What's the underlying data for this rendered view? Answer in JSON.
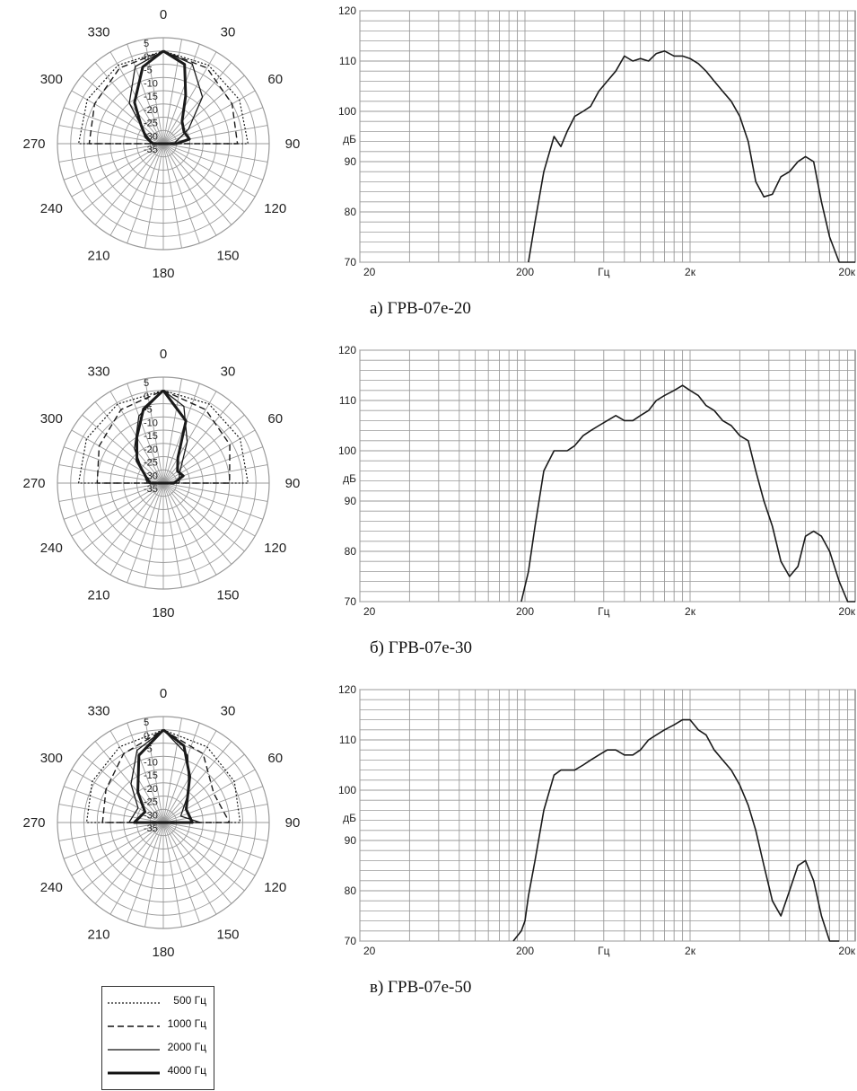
{
  "colors": {
    "grid": "#9a9a9a",
    "curve": "#1a1a1a",
    "axis_text": "#222222"
  },
  "legend": [
    {
      "label": "500 Гц",
      "dash": "2,2",
      "width": 1.2
    },
    {
      "label": "1000 Гц",
      "dash": "7,4",
      "width": 1.4
    },
    {
      "label": "2000 Гц",
      "dash": "",
      "width": 1.3
    },
    {
      "label": "4000 Гц",
      "dash": "",
      "width": 3
    }
  ],
  "chart_data": [
    {
      "type": "polar",
      "angle_labels": [
        "0",
        "30",
        "60",
        "90",
        "120",
        "150",
        "180",
        "210",
        "240",
        "270",
        "300",
        "330"
      ],
      "radial_labels": [
        "5",
        "0",
        "-5",
        "-10",
        "-15",
        "-20",
        "-25",
        "-30",
        "-35"
      ],
      "rlim": [
        -35,
        5
      ],
      "series": [
        {
          "name": "500 Гц",
          "values": [
            [
              0,
              0
            ],
            [
              30,
              -0.8
            ],
            [
              60,
              -1.8
            ],
            [
              90,
              -3
            ],
            [
              270,
              -3
            ],
            [
              300,
              -1.8
            ],
            [
              330,
              -0.8
            ],
            [
              360,
              0
            ]
          ]
        },
        {
          "name": "1000 Гц",
          "values": [
            [
              0,
              0
            ],
            [
              30,
              -2
            ],
            [
              60,
              -5
            ],
            [
              90,
              -7
            ],
            [
              270,
              -7
            ],
            [
              300,
              -5
            ],
            [
              330,
              -2
            ],
            [
              360,
              0
            ]
          ]
        },
        {
          "name": "2000 Гц",
          "values": [
            [
              0,
              0
            ],
            [
              20,
              -3
            ],
            [
              40,
              -12
            ],
            [
              60,
              -24
            ],
            [
              90,
              -31
            ],
            [
              270,
              -31
            ],
            [
              300,
              -27
            ],
            [
              320,
              -15
            ],
            [
              340,
              -4
            ],
            [
              360,
              0
            ]
          ]
        },
        {
          "name": "4000 Гц",
          "values": [
            [
              0,
              0
            ],
            [
              15,
              -4
            ],
            [
              25,
              -15
            ],
            [
              40,
              -24
            ],
            [
              60,
              -26
            ],
            [
              80,
              -25
            ],
            [
              90,
              -30
            ],
            [
              270,
              -31
            ],
            [
              290,
              -28
            ],
            [
              310,
              -24
            ],
            [
              325,
              -16
            ],
            [
              345,
              -5
            ],
            [
              360,
              0
            ]
          ]
        }
      ]
    },
    {
      "type": "line",
      "caption": "а) ГРВ-07е-20",
      "ylabel": "дБ",
      "xlabel": "Гц",
      "x_tick_labels": [
        "20",
        "200",
        "2к",
        "20к"
      ],
      "y_tick_labels": [
        "70",
        "80",
        "90",
        "100",
        "110",
        "120"
      ],
      "ylim": [
        70,
        120
      ],
      "xlim": [
        20,
        20000
      ],
      "x_scale": "log",
      "series": [
        {
          "x": [
            210,
            230,
            260,
            300,
            330,
            360,
            400,
            450,
            500,
            560,
            630,
            710,
            800,
            900,
            1000,
            1120,
            1250,
            1400,
            1600,
            1800,
            2000,
            2240,
            2500,
            2800,
            3150,
            3550,
            4000,
            4500,
            5000,
            5600,
            6300,
            7100,
            8000,
            9000,
            10000,
            11200,
            12500,
            14000,
            16000,
            18000,
            20000
          ],
          "y": [
            70,
            78,
            88,
            95,
            93,
            96,
            99,
            100,
            101,
            104,
            106,
            108,
            111,
            110,
            110.5,
            110,
            111.5,
            112,
            111,
            111,
            110.5,
            109.5,
            108,
            106,
            104,
            102,
            99,
            94,
            86,
            83,
            83.5,
            87,
            88,
            90,
            91,
            90,
            82,
            75,
            70,
            70,
            70
          ]
        }
      ]
    },
    {
      "type": "polar",
      "angle_labels": [
        "0",
        "30",
        "60",
        "90",
        "120",
        "150",
        "180",
        "210",
        "240",
        "270",
        "300",
        "330"
      ],
      "radial_labels": [
        "5",
        "0",
        "-5",
        "-10",
        "-15",
        "-20",
        "-25",
        "-30",
        "-35"
      ],
      "rlim": [
        -35,
        5
      ],
      "series": [
        {
          "name": "500 Гц",
          "values": [
            [
              0,
              0
            ],
            [
              30,
              -0.5
            ],
            [
              60,
              -1.5
            ],
            [
              90,
              -3
            ],
            [
              270,
              -3
            ],
            [
              300,
              -1.5
            ],
            [
              330,
              -0.5
            ],
            [
              360,
              0
            ]
          ]
        },
        {
          "name": "1000 Гц",
          "values": [
            [
              0,
              0
            ],
            [
              30,
              -3
            ],
            [
              60,
              -6
            ],
            [
              90,
              -10
            ],
            [
              270,
              -10
            ],
            [
              300,
              -7
            ],
            [
              330,
              -3
            ],
            [
              360,
              0
            ]
          ]
        },
        {
          "name": "2000 Гц",
          "values": [
            [
              0,
              0
            ],
            [
              15,
              -5
            ],
            [
              30,
              -17
            ],
            [
              60,
              -28
            ],
            [
              90,
              -29
            ],
            [
              270,
              -29
            ],
            [
              300,
              -26
            ],
            [
              320,
              -18
            ],
            [
              340,
              -8
            ],
            [
              360,
              0
            ]
          ]
        },
        {
          "name": "4000 Гц",
          "values": [
            [
              0,
              0
            ],
            [
              20,
              -10
            ],
            [
              30,
              -24
            ],
            [
              50,
              -28
            ],
            [
              70,
              -27
            ],
            [
              90,
              -31
            ],
            [
              270,
              -30
            ],
            [
              290,
              -28
            ],
            [
              310,
              -22
            ],
            [
              330,
              -15
            ],
            [
              345,
              -6
            ],
            [
              360,
              0
            ]
          ]
        }
      ]
    },
    {
      "type": "line",
      "caption": "б) ГРВ-07е-30",
      "ylabel": "дБ",
      "xlabel": "Гц",
      "x_tick_labels": [
        "20",
        "200",
        "2к",
        "20к"
      ],
      "y_tick_labels": [
        "70",
        "80",
        "90",
        "100",
        "110",
        "120"
      ],
      "ylim": [
        70,
        120
      ],
      "xlim": [
        20,
        20000
      ],
      "x_scale": "log",
      "series": [
        {
          "x": [
            190,
            210,
            230,
            260,
            300,
            330,
            360,
            400,
            450,
            500,
            560,
            630,
            710,
            800,
            900,
            1000,
            1120,
            1250,
            1400,
            1600,
            1800,
            2000,
            2240,
            2500,
            2800,
            3150,
            3550,
            4000,
            4500,
            5000,
            5600,
            6300,
            7100,
            8000,
            9000,
            10000,
            11200,
            12500,
            14000,
            16000,
            18000,
            20000
          ],
          "y": [
            70,
            76,
            85,
            96,
            100,
            100,
            100,
            101,
            103,
            104,
            105,
            106,
            107,
            106,
            106,
            107,
            108,
            110,
            111,
            112,
            113,
            112,
            111,
            109,
            108,
            106,
            105,
            103,
            102,
            96,
            90,
            85,
            78,
            75,
            77,
            83,
            84,
            83,
            80,
            74,
            70,
            70
          ]
        }
      ]
    },
    {
      "type": "polar",
      "angle_labels": [
        "0",
        "30",
        "60",
        "90",
        "120",
        "150",
        "180",
        "210",
        "240",
        "270",
        "300",
        "330"
      ],
      "radial_labels": [
        "5",
        "0",
        "-5",
        "-10",
        "-15",
        "-20",
        "-25",
        "-30",
        "-35"
      ],
      "rlim": [
        -35,
        5
      ],
      "series": [
        {
          "name": "500 Гц",
          "values": [
            [
              0,
              0
            ],
            [
              30,
              -2
            ],
            [
              60,
              -4
            ],
            [
              90,
              -6
            ],
            [
              270,
              -6
            ],
            [
              300,
              -4
            ],
            [
              330,
              -2
            ],
            [
              360,
              0
            ]
          ]
        },
        {
          "name": "1000 Гц",
          "values": [
            [
              0,
              0
            ],
            [
              30,
              -5
            ],
            [
              60,
              -13
            ],
            [
              90,
              -10
            ],
            [
              270,
              -12
            ],
            [
              300,
              -10
            ],
            [
              330,
              -5
            ],
            [
              360,
              0
            ]
          ]
        },
        {
          "name": "2000 Гц",
          "values": [
            [
              0,
              0
            ],
            [
              20,
              -8
            ],
            [
              40,
              -20
            ],
            [
              70,
              -28
            ],
            [
              90,
              -21
            ],
            [
              270,
              -22
            ],
            [
              300,
              -24
            ],
            [
              320,
              -16
            ],
            [
              340,
              -6
            ],
            [
              360,
              0
            ]
          ]
        },
        {
          "name": "4000 Гц",
          "values": [
            [
              0,
              0
            ],
            [
              15,
              -5
            ],
            [
              30,
              -15
            ],
            [
              60,
              -25
            ],
            [
              90,
              -24
            ],
            [
              270,
              -24
            ],
            [
              300,
              -27
            ],
            [
              320,
              -20
            ],
            [
              340,
              -8
            ],
            [
              360,
              0
            ]
          ]
        }
      ]
    },
    {
      "type": "line",
      "caption": "в) ГРВ-07е-50",
      "ylabel": "дБ",
      "xlabel": "Гц",
      "x_tick_labels": [
        "20",
        "200",
        "2к",
        "20к"
      ],
      "y_tick_labels": [
        "70",
        "80",
        "90",
        "100",
        "110",
        "120"
      ],
      "ylim": [
        70,
        120
      ],
      "xlim": [
        20,
        20000
      ],
      "x_scale": "log",
      "series": [
        {
          "x": [
            170,
            190,
            200,
            210,
            230,
            260,
            300,
            330,
            360,
            400,
            450,
            500,
            560,
            630,
            710,
            800,
            900,
            1000,
            1120,
            1250,
            1400,
            1600,
            1800,
            2000,
            2240,
            2500,
            2800,
            3150,
            3550,
            4000,
            4500,
            5000,
            5600,
            6300,
            7100,
            8000,
            9000,
            10000,
            11200,
            12500,
            14000,
            16000
          ],
          "y": [
            70,
            72,
            74,
            79,
            86,
            96,
            103,
            104,
            104,
            104,
            105,
            106,
            107,
            108,
            108,
            107,
            107,
            108,
            110,
            111,
            112,
            113,
            114,
            114,
            112,
            111,
            108,
            106,
            104,
            101,
            97,
            92,
            85,
            78,
            75,
            80,
            85,
            86,
            82,
            75,
            70,
            70
          ]
        }
      ]
    }
  ]
}
